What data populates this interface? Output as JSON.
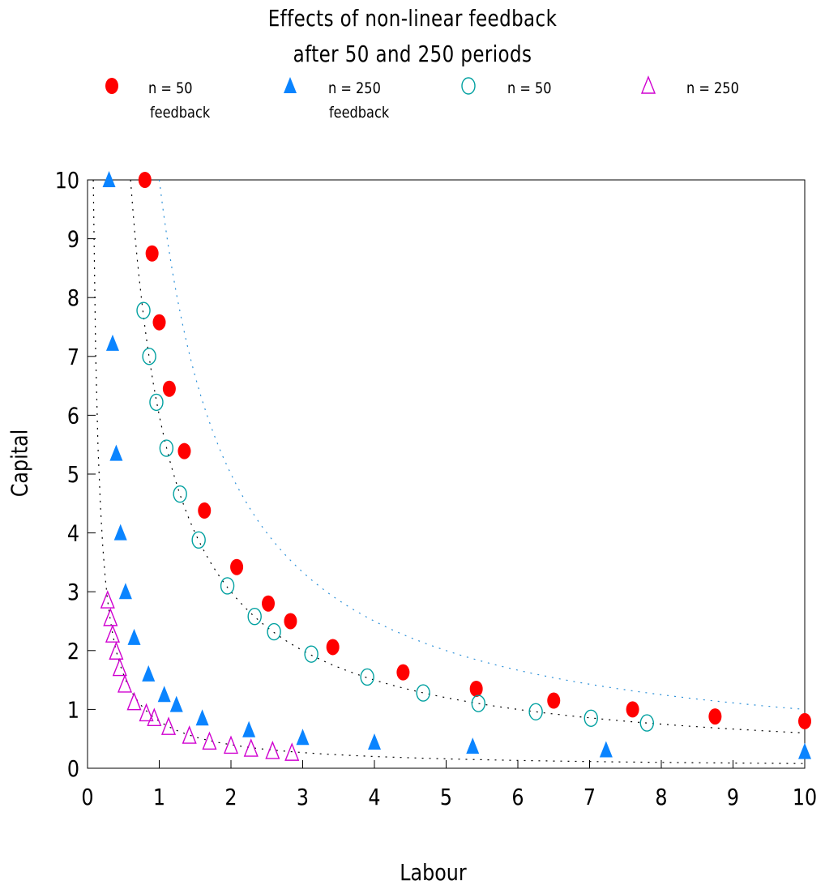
{
  "chart_data": {
    "type": "scatter",
    "title": [
      "Effects of non-linear feedback",
      "after 50 and 250 periods"
    ],
    "xlabel": "Labour",
    "ylabel": "Capital",
    "xlim": [
      0,
      10
    ],
    "ylim": [
      0,
      10
    ],
    "xticks": [
      0,
      1,
      2,
      3,
      4,
      5,
      6,
      7,
      8,
      9,
      10
    ],
    "yticks": [
      0,
      1,
      2,
      3,
      4,
      5,
      6,
      7,
      8,
      9,
      10
    ],
    "grid": false,
    "legend_position": "top",
    "series": [
      {
        "name": "n = 50",
        "sublabel": "feedback",
        "marker": "filled-circle",
        "color": "#ff0000",
        "x": [
          0.8,
          0.9,
          1.0,
          1.14,
          1.35,
          1.63,
          2.08,
          2.52,
          2.83,
          3.42,
          4.4,
          5.42,
          6.5,
          7.6,
          8.75,
          10.0
        ],
        "y": [
          10.0,
          8.75,
          7.58,
          6.45,
          5.39,
          4.38,
          3.42,
          2.8,
          2.5,
          2.06,
          1.63,
          1.35,
          1.15,
          1.0,
          0.88,
          0.8
        ]
      },
      {
        "name": "n = 250",
        "sublabel": "feedback",
        "marker": "filled-triangle",
        "color": "#0a84ff",
        "x": [
          0.3,
          0.35,
          0.4,
          0.46,
          0.53,
          0.65,
          0.85,
          1.07,
          1.24,
          1.6,
          2.25,
          3.0,
          4.0,
          5.37,
          7.23,
          10.0
        ],
        "y": [
          10.0,
          7.22,
          5.35,
          4.0,
          3.0,
          2.22,
          1.6,
          1.25,
          1.08,
          0.85,
          0.65,
          0.52,
          0.44,
          0.37,
          0.31,
          0.28
        ]
      },
      {
        "name": "n = 50",
        "marker": "open-circle",
        "color": "#00a0a0",
        "x": [
          0.78,
          0.86,
          0.96,
          1.1,
          1.29,
          1.55,
          1.95,
          2.33,
          2.6,
          3.12,
          3.9,
          4.68,
          5.45,
          6.25,
          7.02,
          7.8
        ],
        "y": [
          7.78,
          7.0,
          6.22,
          5.44,
          4.66,
          3.88,
          3.1,
          2.58,
          2.32,
          1.94,
          1.55,
          1.28,
          1.1,
          0.96,
          0.85,
          0.77
        ]
      },
      {
        "name": "n = 250",
        "marker": "open-triangle",
        "color": "#d000d0",
        "x": [
          0.28,
          0.32,
          0.35,
          0.4,
          0.45,
          0.52,
          0.65,
          0.82,
          0.93,
          1.13,
          1.42,
          1.7,
          2.0,
          2.28,
          2.58,
          2.85
        ],
        "y": [
          2.85,
          2.55,
          2.27,
          1.98,
          1.7,
          1.42,
          1.12,
          0.93,
          0.85,
          0.7,
          0.55,
          0.45,
          0.38,
          0.33,
          0.29,
          0.26
        ]
      }
    ],
    "curves": [
      {
        "kind": "dotted",
        "color": "#000000",
        "formula": "y = 6/x"
      },
      {
        "kind": "dotted",
        "color": "#2a8fd8",
        "formula": "y = 10/x"
      },
      {
        "kind": "dotted",
        "color": "#000000",
        "formula": "y = 0.8/x"
      }
    ]
  }
}
